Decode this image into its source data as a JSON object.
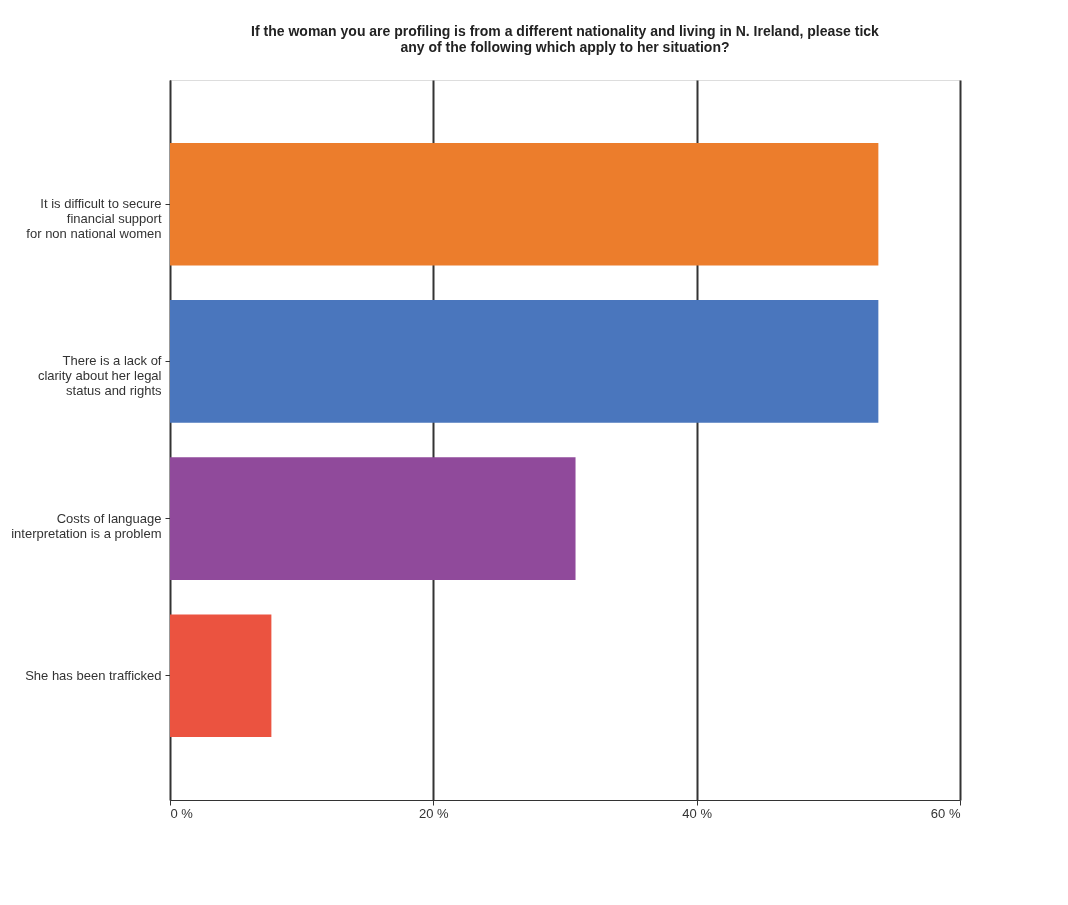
{
  "chart_data": {
    "type": "bar",
    "orientation": "horizontal",
    "title": "If the woman you are profiling is from a different nationality and living in N. Ireland, please tick\nany of the following which apply to her situation?",
    "categories": [
      "It is difficult to secure\nfinancial support\nfor non national women",
      "There is a lack of\nclarity about her legal\nstatus and rights",
      "Costs of language\ninterpretation is a problem",
      "She has been trafficked"
    ],
    "values": [
      53.8,
      53.8,
      30.8,
      7.7
    ],
    "colors": [
      "#ec7d2c",
      "#4a76bd",
      "#904a9b",
      "#eb5340"
    ],
    "xlim": [
      0,
      60
    ],
    "xticks": [
      {
        "value": 0,
        "label": "0 %"
      },
      {
        "value": 20,
        "label": "20 %"
      },
      {
        "value": 40,
        "label": "40 %"
      },
      {
        "value": 60,
        "label": "60 %"
      }
    ],
    "grid": "x"
  }
}
